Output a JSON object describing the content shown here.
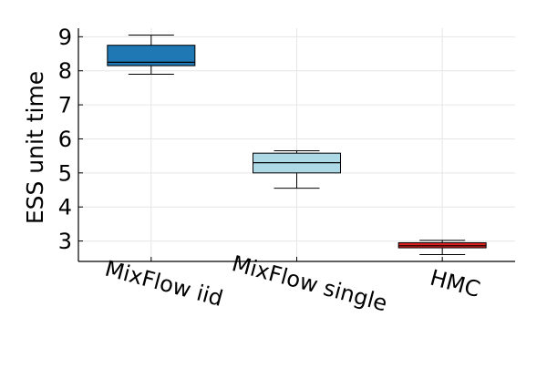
{
  "chart_data": {
    "type": "box",
    "title": "",
    "xlabel": "",
    "ylabel": "ESS unit time",
    "ylim": [
      2.4,
      9.25
    ],
    "yticks": [
      3,
      4,
      5,
      6,
      7,
      8,
      9
    ],
    "grid": true,
    "legend": "none",
    "categories": [
      "MixFlow iid",
      "MixFlow single",
      "HMC"
    ],
    "boxes": [
      {
        "category": "MixFlow iid",
        "min": 7.9,
        "q1": 8.15,
        "median": 8.25,
        "q3": 8.75,
        "max": 9.05,
        "color": "#1f77b4"
      },
      {
        "category": "MixFlow single",
        "min": 4.55,
        "q1": 5.0,
        "median": 5.3,
        "q3": 5.58,
        "max": 5.65,
        "color": "#add8e6"
      },
      {
        "category": "HMC",
        "min": 2.6,
        "q1": 2.8,
        "median": 2.86,
        "q3": 2.95,
        "max": 3.02,
        "color": "#dc2020"
      }
    ]
  }
}
